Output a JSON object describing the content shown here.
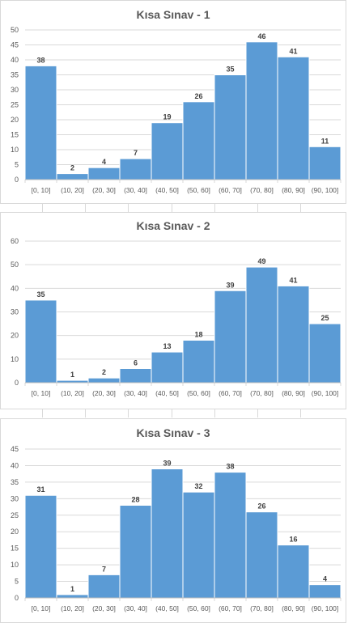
{
  "chart_data": [
    {
      "type": "bar",
      "title": "Kısa Sınav - 1",
      "categories": [
        "[0, 10]",
        "(10, 20]",
        "(20, 30]",
        "(30, 40]",
        "(40, 50]",
        "(50, 60]",
        "(60, 70]",
        "(70, 80]",
        "(80, 90]",
        "(90, 100]"
      ],
      "values": [
        38,
        2,
        4,
        7,
        19,
        26,
        35,
        46,
        41,
        11
      ],
      "ylim": [
        0,
        50
      ],
      "yticks": [
        0,
        5,
        10,
        15,
        20,
        25,
        30,
        35,
        40,
        45,
        50
      ],
      "grid": true,
      "bar_color": "#5b9bd5"
    },
    {
      "type": "bar",
      "title": "Kısa Sınav - 2",
      "categories": [
        "[0, 10]",
        "(10, 20]",
        "(20, 30]",
        "(30, 40]",
        "(40, 50]",
        "(50, 60]",
        "(60, 70]",
        "(70, 80]",
        "(80, 90]",
        "(90, 100]"
      ],
      "values": [
        35,
        1,
        2,
        6,
        13,
        18,
        39,
        49,
        41,
        25
      ],
      "ylim": [
        0,
        60
      ],
      "yticks": [
        0,
        10,
        20,
        30,
        40,
        50,
        60
      ],
      "grid": true,
      "bar_color": "#5b9bd5"
    },
    {
      "type": "bar",
      "title": "Kısa Sınav - 3",
      "categories": [
        "[0, 10]",
        "(10, 20]",
        "(20, 30]",
        "(30, 40]",
        "(40, 50]",
        "(50, 60]",
        "(60, 70]",
        "(70, 80]",
        "(80, 90]",
        "(90, 100]"
      ],
      "values": [
        31,
        1,
        7,
        28,
        39,
        32,
        38,
        26,
        16,
        4
      ],
      "ylim": [
        0,
        45
      ],
      "yticks": [
        0,
        5,
        10,
        15,
        20,
        25,
        30,
        35,
        40,
        45
      ],
      "grid": true,
      "bar_color": "#5b9bd5"
    }
  ]
}
